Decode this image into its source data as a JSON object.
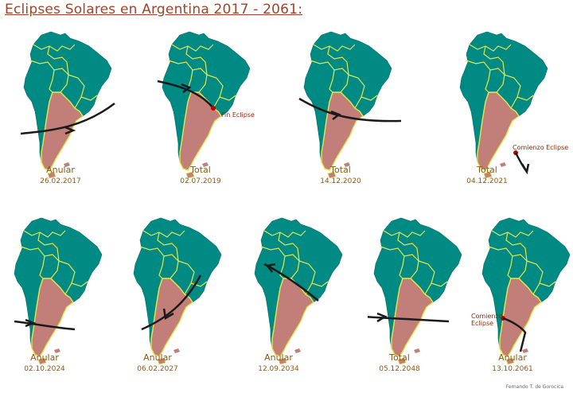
{
  "title": "Eclipses Solares en Argentina 2017 - 2061:",
  "credit": "Fernando T. de Gorocica",
  "colors": {
    "continent": "#008a84",
    "argentina": "#c27f7a",
    "borders": "#e7e74a",
    "path": "#1a1a1a"
  },
  "eclipses": [
    {
      "type": "Anular",
      "date": "26.02.2017",
      "annotation": ""
    },
    {
      "type": "Total",
      "date": "02.07.2019",
      "annotation": "Fin Eclipse"
    },
    {
      "type": "Total",
      "date": "14.12.2020",
      "annotation": ""
    },
    {
      "type": "Total",
      "date": "04.12.2021",
      "annotation": "Comienzo Eclipse"
    },
    {
      "type": "Anular",
      "date": "02.10.2024",
      "annotation": ""
    },
    {
      "type": "Anular",
      "date": "06.02.2027",
      "annotation": ""
    },
    {
      "type": "Anular",
      "date": "12.09.2034",
      "annotation": ""
    },
    {
      "type": "Total",
      "date": "05.12.2048",
      "annotation": ""
    },
    {
      "type": "Anular",
      "date": "13.10.2061",
      "annotation": "Comienzo Eclipse"
    }
  ]
}
